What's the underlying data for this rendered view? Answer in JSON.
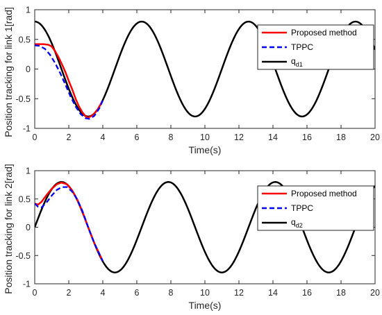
{
  "chart_data": [
    {
      "type": "line",
      "xlabel": "Time(s)",
      "ylabel": "Position tracking for link 1[rad]",
      "xlim": [
        0,
        20
      ],
      "ylim": [
        -1,
        1
      ],
      "xticks": [
        0,
        2,
        4,
        6,
        8,
        10,
        12,
        14,
        16,
        18,
        20
      ],
      "yticks": [
        -1,
        -0.5,
        0,
        0.5,
        1
      ],
      "grid": false,
      "legend_position": "top-right",
      "reference": {
        "amplitude": 0.8,
        "frequency_rad_per_s": 1,
        "phase": "cos"
      },
      "series": [
        {
          "name": "Proposed method",
          "color": "#ff0000",
          "style": "solid",
          "points": [
            [
              0,
              0.42
            ],
            [
              0.5,
              0.42
            ],
            [
              0.8,
              0.41
            ],
            [
              1.0,
              0.38
            ],
            [
              1.2,
              0.3
            ],
            [
              1.4,
              0.2
            ],
            [
              1.6,
              0.08
            ],
            [
              1.8,
              -0.05
            ],
            [
              2.0,
              -0.2
            ],
            [
              2.2,
              -0.34
            ],
            [
              2.4,
              -0.5
            ],
            [
              2.6,
              -0.63
            ],
            [
              2.8,
              -0.73
            ],
            [
              3.0,
              -0.8
            ],
            [
              3.14,
              -0.82
            ],
            [
              3.4,
              -0.78
            ],
            [
              3.7,
              -0.68
            ],
            [
              4.0,
              -0.53
            ]
          ]
        },
        {
          "name": "TPPC",
          "color": "#0000ff",
          "style": "dashed",
          "points": [
            [
              0,
              0.4
            ],
            [
              0.3,
              0.39
            ],
            [
              0.6,
              0.34
            ],
            [
              0.9,
              0.24
            ],
            [
              1.2,
              0.1
            ],
            [
              1.5,
              -0.07
            ],
            [
              1.8,
              -0.26
            ],
            [
              2.1,
              -0.46
            ],
            [
              2.4,
              -0.63
            ],
            [
              2.7,
              -0.76
            ],
            [
              3.0,
              -0.83
            ],
            [
              3.2,
              -0.84
            ],
            [
              3.5,
              -0.79
            ],
            [
              3.8,
              -0.66
            ],
            [
              4.0,
              -0.53
            ]
          ]
        },
        {
          "name": "q_d1",
          "legend_main": "q",
          "legend_sub": "d1",
          "color": "#000000",
          "style": "solid",
          "function": "0.8*cos(t)"
        }
      ]
    },
    {
      "type": "line",
      "xlabel": "Time(s)",
      "ylabel": "Position tracking for link 2[rad]",
      "xlim": [
        0,
        20
      ],
      "ylim": [
        -1,
        1
      ],
      "xticks": [
        0,
        2,
        4,
        6,
        8,
        10,
        12,
        14,
        16,
        18,
        20
      ],
      "yticks": [
        -1,
        -0.5,
        0,
        0.5,
        1
      ],
      "grid": false,
      "legend_position": "top-right",
      "reference": {
        "amplitude": 0.8,
        "frequency_rad_per_s": 1,
        "phase": "sin"
      },
      "series": [
        {
          "name": "Proposed method",
          "color": "#ff0000",
          "style": "solid",
          "points": [
            [
              0,
              0.42
            ],
            [
              0.2,
              0.4
            ],
            [
              0.4,
              0.45
            ],
            [
              0.7,
              0.57
            ],
            [
              1.0,
              0.68
            ],
            [
              1.3,
              0.76
            ],
            [
              1.57,
              0.79
            ],
            [
              1.9,
              0.76
            ],
            [
              2.2,
              0.65
            ],
            [
              2.5,
              0.49
            ],
            [
              2.8,
              0.28
            ],
            [
              3.14,
              0.0
            ],
            [
              3.5,
              -0.28
            ],
            [
              4.0,
              -0.6
            ]
          ]
        },
        {
          "name": "TPPC",
          "color": "#0000ff",
          "style": "dashed",
          "points": [
            [
              0,
              0.42
            ],
            [
              0.2,
              0.36
            ],
            [
              0.4,
              0.35
            ],
            [
              0.7,
              0.44
            ],
            [
              1.0,
              0.56
            ],
            [
              1.3,
              0.66
            ],
            [
              1.6,
              0.71
            ],
            [
              1.9,
              0.71
            ],
            [
              2.2,
              0.63
            ],
            [
              2.5,
              0.49
            ],
            [
              2.8,
              0.29
            ],
            [
              3.14,
              0.0
            ],
            [
              3.5,
              -0.28
            ],
            [
              4.0,
              -0.6
            ]
          ]
        },
        {
          "name": "q_d2",
          "legend_main": "q",
          "legend_sub": "d2",
          "color": "#000000",
          "style": "solid",
          "function": "0.8*sin(t)"
        }
      ]
    }
  ]
}
